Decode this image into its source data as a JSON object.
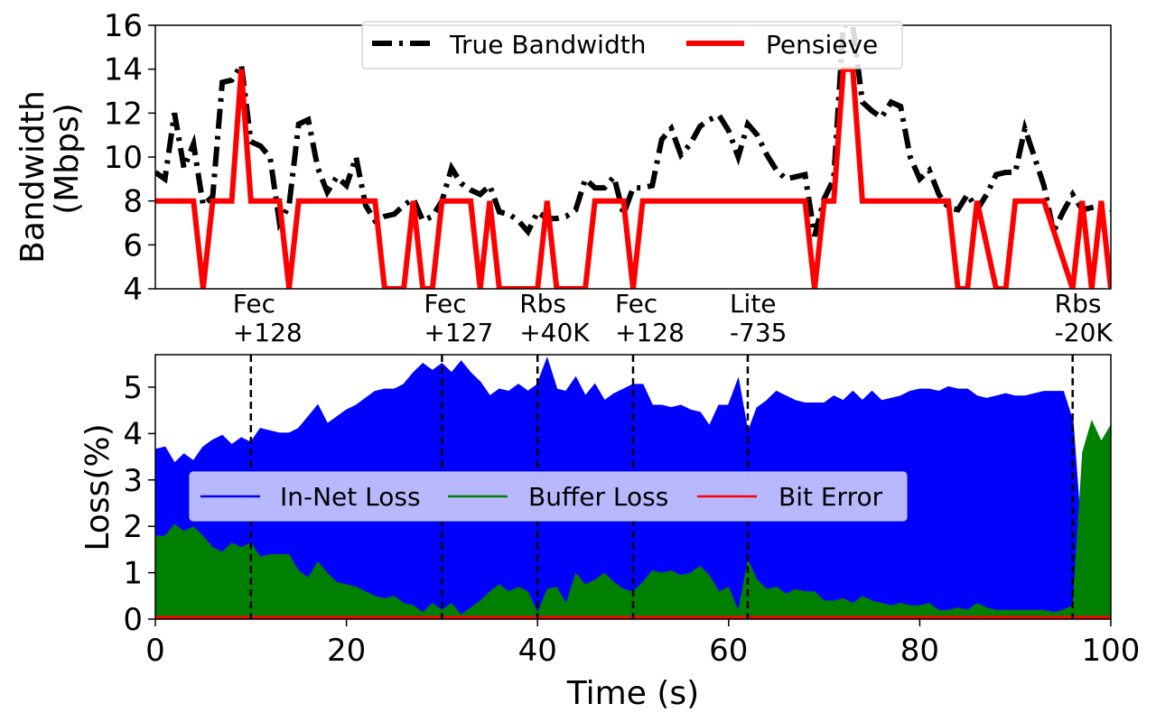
{
  "chart_data": [
    {
      "type": "line",
      "ylabel_line1": "Bandwidth",
      "ylabel_line2": "(Mbps)",
      "xlim": [
        0,
        100
      ],
      "ylim": [
        4,
        16
      ],
      "yticks": [
        4,
        6,
        8,
        10,
        12,
        14,
        16
      ],
      "grid": false,
      "legend_position": "top-center",
      "series": [
        {
          "name": "True Bandwidth",
          "color": "#000000",
          "style": "dash-dot",
          "x": [
            0,
            1,
            2,
            3,
            4,
            5,
            6,
            7,
            8,
            9,
            10,
            11,
            12,
            13,
            14,
            15,
            16,
            17,
            18,
            19,
            20,
            21,
            22,
            23,
            24,
            25,
            26,
            27,
            28,
            29,
            30,
            31,
            32,
            33,
            34,
            35,
            36,
            37,
            38,
            39,
            40,
            41,
            42,
            43,
            44,
            45,
            46,
            47,
            48,
            49,
            50,
            51,
            52,
            53,
            54,
            55,
            56,
            57,
            58,
            59,
            60,
            61,
            62,
            63,
            64,
            65,
            66,
            67,
            68,
            69,
            70,
            71,
            72,
            73,
            74,
            75,
            76,
            77,
            78,
            79,
            80,
            81,
            82,
            83,
            84,
            85,
            86,
            87,
            88,
            89,
            90,
            91,
            92,
            93,
            94,
            95,
            96,
            97,
            98,
            99,
            100
          ],
          "values": [
            9.3,
            9.0,
            12.0,
            9.5,
            10.6,
            7.8,
            8.2,
            13.4,
            13.5,
            14.2,
            10.7,
            10.5,
            10.0,
            7.0,
            7.8,
            11.5,
            11.7,
            9.5,
            8.4,
            9.1,
            8.7,
            10.0,
            7.8,
            7.1,
            7.3,
            7.4,
            7.8,
            8.1,
            7.1,
            7.3,
            8.0,
            9.5,
            8.8,
            8.5,
            8.3,
            8.7,
            7.5,
            7.4,
            7.1,
            6.6,
            7.5,
            7.2,
            7.2,
            7.3,
            7.6,
            9.0,
            8.6,
            8.6,
            9.1,
            7.4,
            8.6,
            8.6,
            8.7,
            10.8,
            11.3,
            10.1,
            10.6,
            11.4,
            11.7,
            11.9,
            11.2,
            10.0,
            11.5,
            11.0,
            10.1,
            9.4,
            9.0,
            9.1,
            9.2,
            6.4,
            8.1,
            9.0,
            16.0,
            16.0,
            12.5,
            12.1,
            11.8,
            12.5,
            12.3,
            10.0,
            9.0,
            9.4,
            8.3,
            7.7,
            7.6,
            8.3,
            7.6,
            8.3,
            9.2,
            9.3,
            9.3,
            11.3,
            10.0,
            8.7,
            6.6,
            7.5,
            8.3,
            7.6,
            7.7,
            7.8,
            7.6
          ]
        },
        {
          "name": "Pensieve",
          "color": "#ff0000",
          "style": "solid",
          "x": [
            0,
            4,
            5,
            6,
            8,
            9,
            10,
            13,
            14,
            15,
            23,
            24,
            26,
            27,
            28,
            29,
            30,
            31,
            33,
            34,
            35,
            36,
            38,
            40,
            41,
            42,
            45,
            46,
            49,
            50,
            51,
            68,
            69,
            70,
            71,
            72,
            73,
            74,
            75,
            83,
            84,
            85,
            86,
            88,
            89,
            90,
            91,
            92,
            93,
            96,
            97,
            98,
            99,
            100
          ],
          "values": [
            8,
            8,
            4,
            8,
            8,
            14,
            8,
            8,
            4,
            8,
            8,
            4,
            4,
            8,
            4,
            4,
            8,
            8,
            8,
            4,
            8,
            4,
            4,
            4,
            8,
            4,
            4,
            8,
            8,
            4,
            8,
            8,
            4,
            8,
            8,
            14,
            14,
            8,
            8,
            8,
            4,
            4,
            8,
            4,
            4,
            8,
            8,
            8,
            8,
            4,
            8,
            4,
            8,
            4
          ]
        }
      ]
    },
    {
      "type": "area",
      "xlabel": "Time (s)",
      "ylabel": "Loss(%)",
      "xlim": [
        0,
        100
      ],
      "ylim": [
        0,
        5.7
      ],
      "xticks": [
        0,
        20,
        40,
        60,
        80,
        100
      ],
      "yticks": [
        0,
        1,
        2,
        3,
        4,
        5
      ],
      "grid": false,
      "legend_position": "center-left",
      "x": [
        0,
        1,
        2,
        3,
        4,
        5,
        6,
        7,
        8,
        9,
        10,
        11,
        12,
        13,
        14,
        15,
        16,
        17,
        18,
        19,
        20,
        21,
        22,
        23,
        24,
        25,
        26,
        27,
        28,
        29,
        30,
        31,
        32,
        33,
        34,
        35,
        36,
        37,
        38,
        39,
        40,
        41,
        42,
        43,
        44,
        45,
        46,
        47,
        48,
        49,
        50,
        51,
        52,
        53,
        54,
        55,
        56,
        57,
        58,
        59,
        60,
        61,
        62,
        63,
        64,
        65,
        66,
        67,
        68,
        69,
        70,
        71,
        72,
        73,
        74,
        75,
        76,
        77,
        78,
        79,
        80,
        81,
        82,
        83,
        84,
        85,
        86,
        87,
        88,
        89,
        90,
        91,
        92,
        93,
        94,
        95,
        96,
        97,
        98,
        99,
        100
      ],
      "series": [
        {
          "name": "In-Net Loss",
          "color": "#0000ff",
          "values": [
            3.65,
            3.7,
            3.35,
            3.55,
            3.4,
            3.7,
            3.85,
            3.95,
            3.75,
            3.9,
            3.8,
            4.1,
            4.05,
            4.0,
            4.0,
            4.1,
            4.35,
            4.6,
            4.2,
            4.35,
            4.5,
            4.6,
            4.75,
            4.9,
            4.95,
            4.95,
            5.05,
            5.3,
            5.5,
            5.35,
            5.5,
            5.3,
            5.55,
            5.3,
            5.1,
            4.8,
            4.95,
            4.9,
            5.05,
            4.9,
            5.05,
            5.6,
            4.95,
            4.9,
            5.2,
            4.8,
            5.05,
            4.7,
            4.85,
            4.95,
            5.05,
            5.05,
            4.6,
            4.6,
            4.55,
            4.6,
            4.5,
            4.45,
            4.15,
            4.6,
            4.6,
            5.15,
            4.0,
            4.55,
            4.7,
            4.9,
            4.8,
            4.7,
            4.65,
            4.65,
            4.65,
            4.8,
            4.7,
            4.9,
            4.7,
            4.9,
            4.7,
            4.75,
            4.8,
            4.9,
            4.95,
            4.95,
            4.9,
            5.0,
            4.95,
            4.95,
            4.8,
            4.75,
            4.8,
            4.85,
            4.8,
            4.8,
            4.85,
            4.9,
            4.9,
            4.9,
            4.25,
            1.4,
            0.7,
            1.2,
            0.75
          ]
        },
        {
          "name": "Buffer Loss",
          "color": "#008000",
          "values": [
            1.8,
            1.8,
            2.05,
            1.9,
            2.0,
            1.8,
            1.55,
            1.45,
            1.65,
            1.55,
            1.65,
            1.35,
            1.4,
            1.4,
            1.4,
            1.05,
            0.9,
            1.25,
            1.0,
            0.8,
            0.75,
            0.7,
            0.6,
            0.5,
            0.45,
            0.5,
            0.35,
            0.3,
            0.15,
            0.35,
            0.2,
            0.35,
            0.1,
            0.25,
            0.4,
            0.6,
            0.75,
            0.6,
            0.7,
            0.6,
            0.15,
            0.65,
            0.7,
            0.35,
            1.0,
            0.75,
            0.85,
            1.0,
            0.8,
            0.65,
            0.6,
            0.8,
            1.05,
            1.0,
            1.05,
            0.95,
            1.0,
            1.15,
            0.95,
            0.6,
            0.7,
            0.2,
            1.3,
            0.85,
            0.65,
            0.7,
            0.55,
            0.65,
            0.6,
            0.6,
            0.4,
            0.4,
            0.45,
            0.35,
            0.5,
            0.4,
            0.35,
            0.3,
            0.35,
            0.3,
            0.3,
            0.35,
            0.2,
            0.2,
            0.25,
            0.2,
            0.35,
            0.25,
            0.2,
            0.2,
            0.2,
            0.2,
            0.2,
            0.2,
            0.15,
            0.2,
            0.3,
            3.6,
            4.3,
            3.85,
            4.2
          ]
        },
        {
          "name": "Bit Error",
          "color": "#ff0000",
          "values": [
            0.03,
            0.03,
            0.03,
            0.03,
            0.03,
            0.03,
            0.03,
            0.03,
            0.03,
            0.03,
            0.03,
            0.03,
            0.03,
            0.03,
            0.03,
            0.03,
            0.03,
            0.03,
            0.03,
            0.03,
            0.03,
            0.03,
            0.03,
            0.03,
            0.03,
            0.03,
            0.03,
            0.03,
            0.03,
            0.03,
            0.03,
            0.03,
            0.03,
            0.03,
            0.03,
            0.03,
            0.03,
            0.03,
            0.03,
            0.03,
            0.03,
            0.03,
            0.03,
            0.03,
            0.03,
            0.03,
            0.03,
            0.03,
            0.03,
            0.03,
            0.03,
            0.03,
            0.03,
            0.03,
            0.03,
            0.03,
            0.03,
            0.03,
            0.03,
            0.03,
            0.03,
            0.03,
            0.03,
            0.03,
            0.03,
            0.03,
            0.03,
            0.03,
            0.03,
            0.03,
            0.03,
            0.03,
            0.03,
            0.03,
            0.03,
            0.03,
            0.03,
            0.03,
            0.03,
            0.03,
            0.03,
            0.03,
            0.03,
            0.03,
            0.03,
            0.03,
            0.03,
            0.03,
            0.03,
            0.03,
            0.03,
            0.03,
            0.03,
            0.03,
            0.03,
            0.03,
            0.03,
            0.03,
            0.03,
            0.03,
            0.03
          ]
        }
      ]
    }
  ],
  "annotations": [
    {
      "x": 10,
      "line1": "Fec",
      "line2": "+128"
    },
    {
      "x": 30,
      "line1": "Fec",
      "line2": "+127"
    },
    {
      "x": 40,
      "line1": "Rbs",
      "line2": "+40K"
    },
    {
      "x": 50,
      "line1": "Fec",
      "line2": "+128"
    },
    {
      "x": 62,
      "line1": "Lite",
      "line2": "-735"
    },
    {
      "x": 96,
      "line1": "Rbs",
      "line2": "-20K"
    }
  ]
}
